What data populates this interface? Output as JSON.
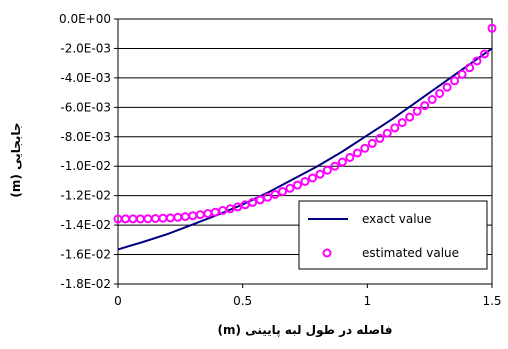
{
  "chart_data": {
    "type": "line",
    "xlabel": "فاصله در طول لبه پایینی (m)",
    "ylabel": "جابجایی (m)",
    "xlim": [
      0,
      1.5
    ],
    "ylim": [
      -0.018,
      0.0
    ],
    "xticks": [
      0,
      0.5,
      1,
      1.5
    ],
    "xtick_labels": [
      "0",
      "0.5",
      "1",
      "1.5"
    ],
    "yticks": [
      0.0,
      -0.002,
      -0.004,
      -0.006,
      -0.008,
      -0.01,
      -0.012,
      -0.014,
      -0.016,
      -0.018
    ],
    "ytick_labels": [
      "0.0E+00",
      "-2.0E-03",
      "-4.0E-03",
      "-6.0E-03",
      "-8.0E-03",
      "-1.0E-02",
      "-1.2E-02",
      "-1.4E-02",
      "-1.6E-02",
      "-1.8E-02"
    ],
    "grid": "horizontal",
    "legend_position": "bottom-right",
    "series": [
      {
        "name": "exact value",
        "style": "line",
        "color": "#000080",
        "x": [
          0,
          0.1,
          0.2,
          0.3,
          0.4,
          0.5,
          0.6,
          0.7,
          0.8,
          0.9,
          1.0,
          1.1,
          1.2,
          1.3,
          1.4,
          1.5
        ],
        "y": [
          -0.01565,
          -0.01515,
          -0.0146,
          -0.01395,
          -0.0133,
          -0.0126,
          -0.0118,
          -0.0109,
          -0.01,
          -0.009,
          -0.0079,
          -0.0068,
          -0.0056,
          -0.0044,
          -0.0032,
          -0.002
        ]
      },
      {
        "name": "estimated value",
        "style": "markers",
        "color": "#ff00ff",
        "x": [
          0,
          0.03,
          0.06,
          0.09,
          0.12,
          0.15,
          0.18,
          0.21,
          0.24,
          0.27,
          0.3,
          0.33,
          0.36,
          0.39,
          0.42,
          0.45,
          0.48,
          0.51,
          0.54,
          0.57,
          0.6,
          0.63,
          0.66,
          0.69,
          0.72,
          0.75,
          0.78,
          0.81,
          0.84,
          0.87,
          0.9,
          0.93,
          0.96,
          0.99,
          1.02,
          1.05,
          1.08,
          1.11,
          1.14,
          1.17,
          1.2,
          1.23,
          1.26,
          1.29,
          1.32,
          1.35,
          1.38,
          1.41,
          1.44,
          1.47,
          1.5
        ],
        "y": [
          -0.01358,
          -0.01358,
          -0.01358,
          -0.01358,
          -0.01357,
          -0.01355,
          -0.01353,
          -0.01351,
          -0.01347,
          -0.01342,
          -0.01336,
          -0.01329,
          -0.01321,
          -0.01312,
          -0.01301,
          -0.01289,
          -0.01276,
          -0.01262,
          -0.01246,
          -0.01229,
          -0.01211,
          -0.01192,
          -0.01172,
          -0.0115,
          -0.01128,
          -0.01104,
          -0.0108,
          -0.01054,
          -0.01027,
          -0.01,
          -0.00971,
          -0.00941,
          -0.0091,
          -0.00878,
          -0.00845,
          -0.00811,
          -0.00776,
          -0.0074,
          -0.00704,
          -0.00666,
          -0.00627,
          -0.00588,
          -0.00547,
          -0.00506,
          -0.00463,
          -0.0042,
          -0.00376,
          -0.00331,
          -0.00285,
          -0.00238,
          -0.00063
        ]
      }
    ]
  }
}
